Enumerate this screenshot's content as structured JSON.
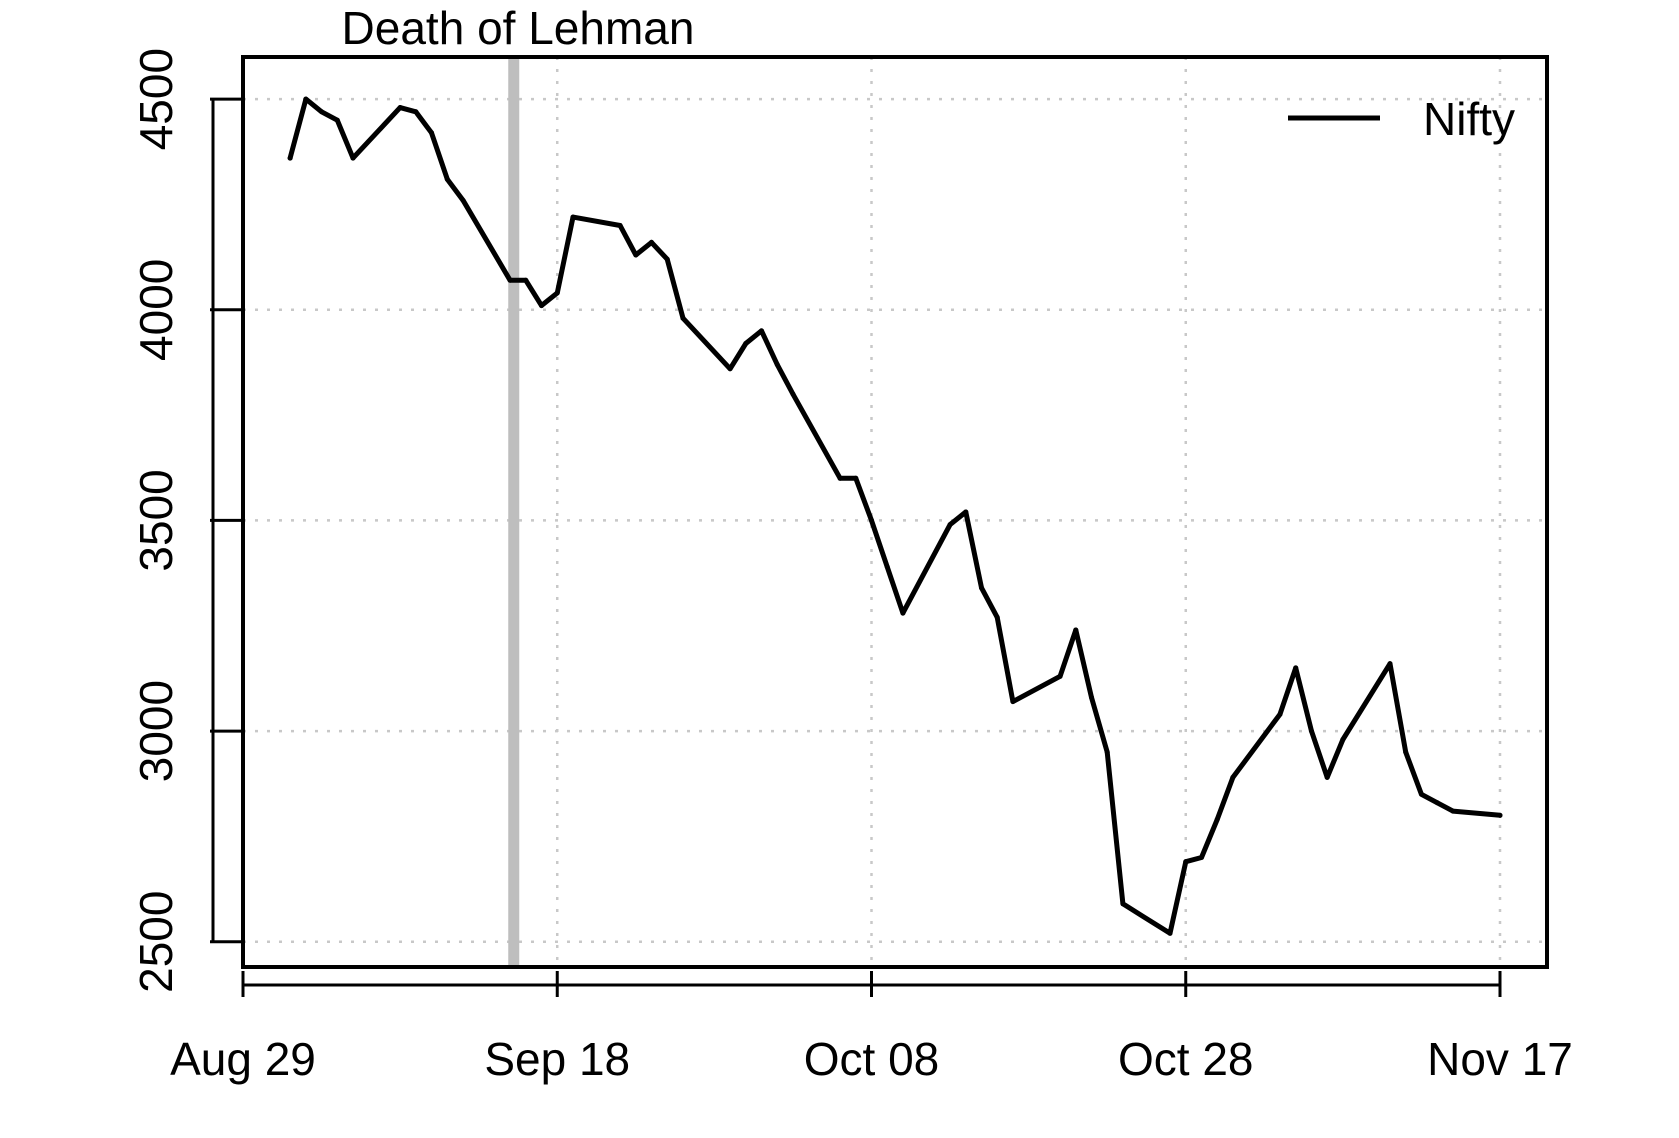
{
  "chart_data": {
    "type": "line",
    "title": "Death of Lehman",
    "xlabel": "",
    "ylabel": "",
    "xlim": [
      0,
      80
    ],
    "ylim": [
      2440,
      4600
    ],
    "x_ticks": [
      {
        "x": 0,
        "label": "Aug 29"
      },
      {
        "x": 20,
        "label": "Sep 18"
      },
      {
        "x": 40,
        "label": "Oct 08"
      },
      {
        "x": 60,
        "label": "Oct 28"
      },
      {
        "x": 80,
        "label": "Nov 17"
      }
    ],
    "y_ticks": [
      2500,
      3000,
      3500,
      4000,
      4500
    ],
    "y_tick_labels": [
      "2500",
      "3000",
      "3500",
      "4000",
      "4500"
    ],
    "grid": true,
    "legend": {
      "position": "top-right",
      "entries": [
        "Nifty"
      ]
    },
    "event_line": {
      "x": 17.2,
      "label": "Death of Lehman"
    },
    "series": [
      {
        "name": "Nifty",
        "color": "#000000",
        "x": [
          3,
          4,
          5,
          6,
          7,
          10,
          11,
          12,
          13,
          14,
          17,
          18,
          19,
          20,
          21,
          24,
          25,
          26,
          27,
          28,
          31,
          32,
          33,
          34,
          35,
          38,
          39,
          40,
          41,
          42,
          45,
          46,
          47,
          48,
          49,
          52,
          53,
          54,
          55,
          56,
          59,
          60,
          61,
          62,
          63,
          66,
          67,
          68,
          69,
          70,
          73,
          74,
          75,
          76,
          77,
          80
        ],
        "values": [
          4360,
          4500,
          4470,
          4450,
          4360,
          4480,
          4470,
          4420,
          4310,
          4260,
          4070,
          4070,
          4010,
          4040,
          4220,
          4200,
          4130,
          4160,
          4120,
          3980,
          3860,
          3920,
          3950,
          3870,
          3800,
          3600,
          3600,
          3500,
          3390,
          3280,
          3490,
          3520,
          3340,
          3270,
          3070,
          3130,
          3240,
          3080,
          2950,
          2590,
          2520,
          2690,
          2700,
          2790,
          2890,
          3040,
          3150,
          3000,
          2890,
          2980,
          3160,
          2950,
          2850,
          2830,
          2810,
          2800
        ]
      }
    ]
  }
}
